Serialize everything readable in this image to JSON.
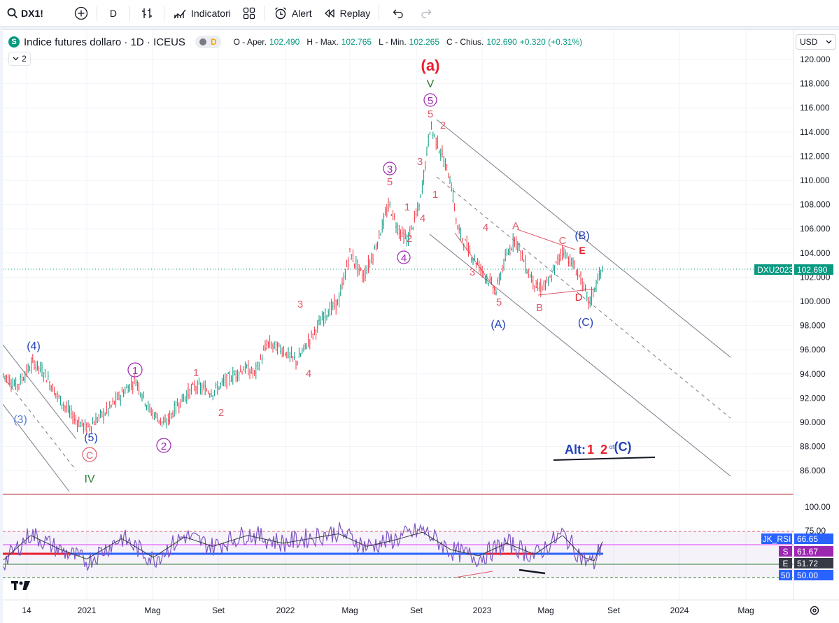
{
  "toolbar": {
    "symbol": "DX1!",
    "interval": "D",
    "indicators_label": "Indicatori",
    "alert_label": "Alert",
    "replay_label": "Replay"
  },
  "legend": {
    "symbol_badge": "S",
    "title": "Indice futures dollaro · 1D · ICEUS",
    "delay_badge": "D",
    "ohlc": {
      "open_label": "O - Aper.",
      "open": "102.490",
      "high_label": "H - Max.",
      "high": "102.765",
      "low_label": "L - Min.",
      "low": "102.265",
      "close_label": "C - Chius.",
      "close": "102.690",
      "change": "+0.320 (+0.31%)"
    },
    "collapsed_count": "2"
  },
  "price_scale": {
    "currency": "USD",
    "ticks": [
      "120.000",
      "118.000",
      "116.000",
      "114.000",
      "112.000",
      "110.000",
      "108.000",
      "106.000",
      "104.000",
      "102.000",
      "100.000",
      "98.000",
      "96.000",
      "94.000",
      "92.000",
      "90.000",
      "88.000",
      "86.000"
    ],
    "symbol_tag": "DXU2023",
    "last_price": "102.690"
  },
  "rsi_scale": {
    "ticks": [
      "100.00",
      "75.00"
    ],
    "tags": [
      {
        "name": "JK_RSI",
        "value": "66.65",
        "color": "#2962ff"
      },
      {
        "name": "S",
        "value": "61.67",
        "color": "#9c27b0"
      },
      {
        "name": "E",
        "value": "51.72",
        "color": "#363a45"
      },
      {
        "name": "50",
        "value": "50.00",
        "color": "#2962ff"
      }
    ]
  },
  "time_axis": [
    "14",
    "2021",
    "Mag",
    "Set",
    "2022",
    "Mag",
    "Set",
    "2023",
    "Mag",
    "Set",
    "2024",
    "Mag"
  ],
  "wave_labels": {
    "a_top": "(a)",
    "v_top": "V",
    "c5_top": "5",
    "s5_top": "5",
    "s2_top": "2",
    "c3": "3",
    "s5_c3": "5",
    "s1_up": "1",
    "s2_c4": "2",
    "s3_up": "3",
    "s4_up": "4",
    "s1_dn": "1",
    "c4": "4",
    "s3_2022": "3",
    "s4_2022": "4",
    "s1_2021": "1",
    "s2_2021": "2",
    "c1": "1",
    "c2": "2",
    "b4": "(4)",
    "b3": "(3)",
    "b5": "(5)",
    "cc": "C",
    "iv": "IV",
    "s4_dn": "4",
    "s3_dn": "3",
    "s5_dn": "5",
    "bA": "(A)",
    "tA": "A",
    "tB": "B",
    "tC": "C",
    "tD": "D",
    "tE": "E",
    "bB": "(B)",
    "bC": "(C)",
    "alt_prefix": "Alt:",
    "alt_1": "1",
    "alt_2": "2",
    "alt_of": "of",
    "alt_c": "(C)"
  }
}
